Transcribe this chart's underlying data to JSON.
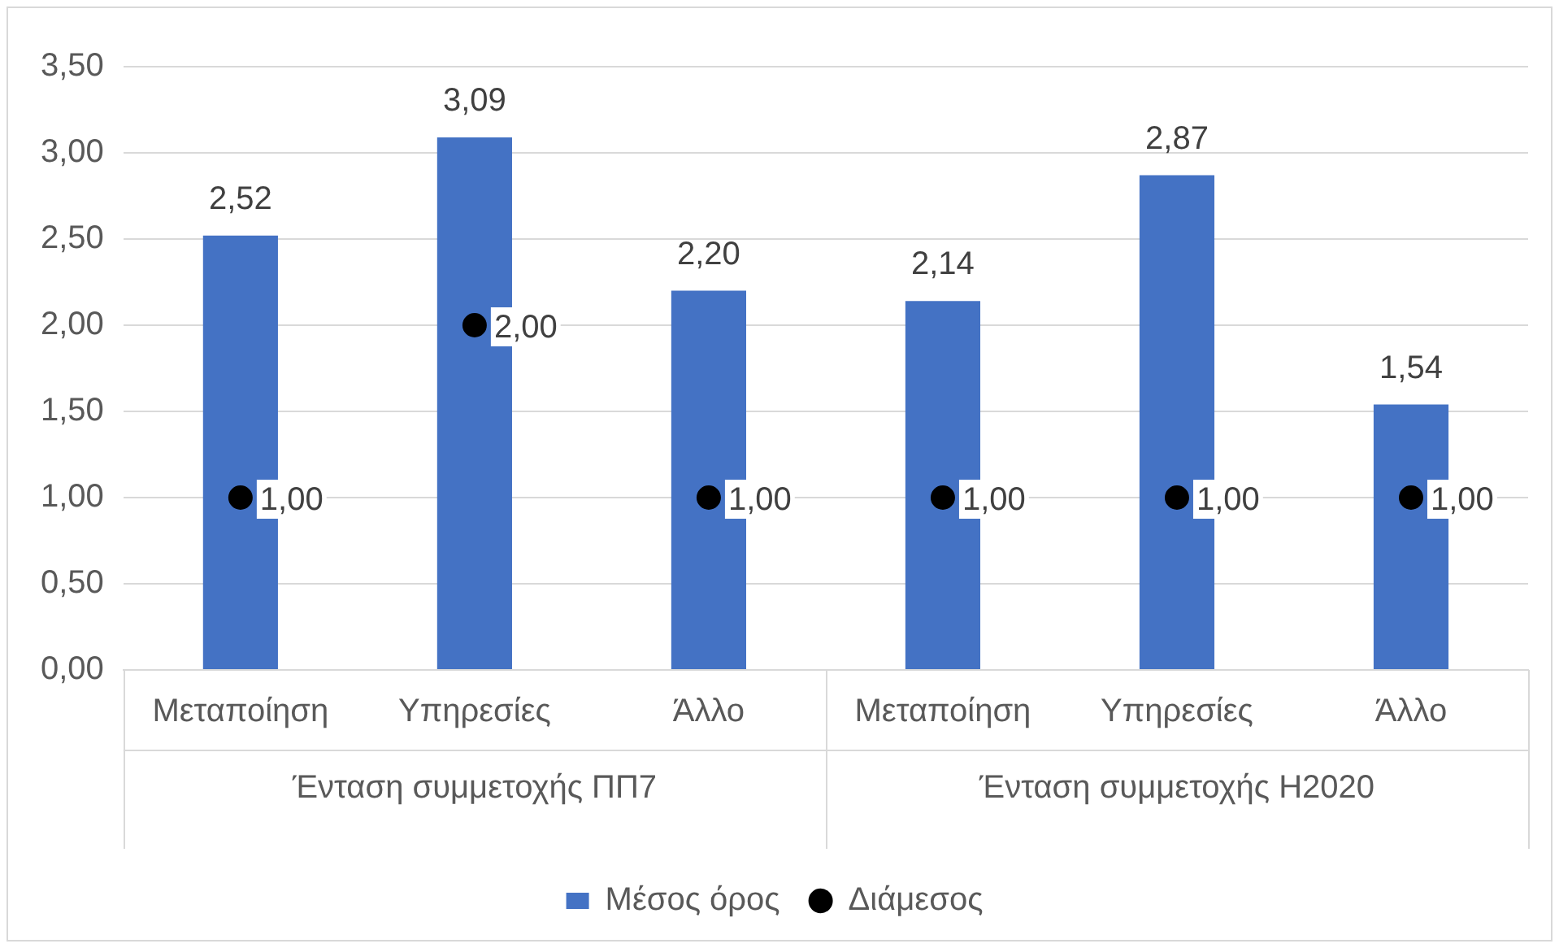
{
  "chart_data": {
    "type": "bar",
    "categories": [
      "Μεταποίηση",
      "Υπηρεσίες",
      "Άλλο",
      "Μεταποίηση",
      "Υπηρεσίες",
      "Άλλο"
    ],
    "annotations": [
      "Ένταση συμμετοχής ΠΠ7",
      "Ένταση συμμετοχής Η2020"
    ],
    "series": [
      {
        "name": "Μέσος όρος",
        "color": "#4472c4",
        "values": [
          2.52,
          3.09,
          2.2,
          2.14,
          2.87,
          1.54
        ],
        "value_labels": [
          "2,52",
          "3,09",
          "2,20",
          "2,14",
          "2,87",
          "1,54"
        ]
      },
      {
        "name": "Διάμεσος",
        "type": "scatter",
        "color": "#000000",
        "values": [
          1.0,
          2.0,
          1.0,
          1.0,
          1.0,
          1.0
        ],
        "value_labels": [
          "1,00",
          "2,00",
          "1,00",
          "1,00",
          "1,00",
          "1,00"
        ]
      }
    ],
    "ylim": [
      0,
      3.5
    ],
    "yticks": [
      {
        "value": 0,
        "label": "0,00"
      },
      {
        "value": 0.5,
        "label": "0,50"
      },
      {
        "value": 1,
        "label": "1,00"
      },
      {
        "value": 1.5,
        "label": "1,50"
      },
      {
        "value": 2,
        "label": "2,00"
      },
      {
        "value": 2.5,
        "label": "2,50"
      },
      {
        "value": 3,
        "label": "3,00"
      },
      {
        "value": 3.5,
        "label": "3,50"
      }
    ],
    "grid": "y",
    "legend": "bottom",
    "marker": "circle"
  }
}
